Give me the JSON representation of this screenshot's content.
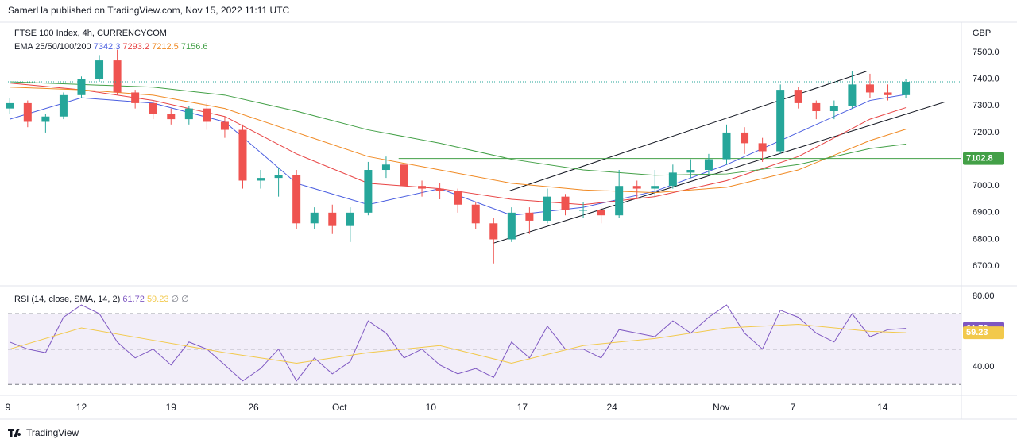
{
  "header": {
    "publisher": "SamerHa published on TradingView.com, Nov 15, 2022 11:11 UTC"
  },
  "footer": {
    "brand": "TradingView"
  },
  "chart_data": [
    {
      "type": "candlestick",
      "title": "FTSE 100 Index, 4h, CURRENCYCOM",
      "currency": "GBP",
      "indicator_label": "EMA 25/50/100/200",
      "up_color": "#26a69a",
      "down_color": "#ef5350",
      "x": [
        -4,
        -3,
        -2,
        -1,
        0,
        1,
        2,
        3,
        4,
        5,
        6,
        7,
        8,
        9,
        10,
        11,
        12,
        13,
        14,
        15,
        16,
        17,
        18,
        19,
        20,
        21,
        22,
        23,
        24,
        25,
        26,
        27,
        28,
        29,
        30,
        31,
        32,
        33,
        34,
        35,
        36,
        37,
        38,
        39,
        40,
        41,
        42,
        43,
        44,
        45,
        46
      ],
      "open": [
        7290,
        7310,
        7240,
        7260,
        7340,
        7400,
        7470,
        7350,
        7310,
        7270,
        7250,
        7290,
        7240,
        7210,
        7020,
        7030,
        7040,
        6860,
        6900,
        6850,
        6900,
        7060,
        7080,
        7000,
        6990,
        6980,
        6930,
        6860,
        6800,
        6900,
        6870,
        6960,
        6910,
        6910,
        6890,
        7000,
        6990,
        7000,
        7050,
        7060,
        7100,
        7200,
        7160,
        7130,
        7360,
        7310,
        7280,
        7300,
        7380,
        7350,
        7340
      ],
      "high": [
        7330,
        7320,
        7270,
        7350,
        7410,
        7490,
        7510,
        7360,
        7320,
        7290,
        7300,
        7310,
        7260,
        7230,
        7060,
        7070,
        7060,
        6920,
        6930,
        6920,
        7090,
        7110,
        7090,
        7020,
        7010,
        6990,
        6940,
        6880,
        6920,
        6920,
        6990,
        6970,
        6940,
        6920,
        7060,
        7020,
        7060,
        7080,
        7100,
        7120,
        7230,
        7220,
        7180,
        7380,
        7370,
        7320,
        7320,
        7430,
        7420,
        7380,
        7400
      ],
      "low": [
        7270,
        7220,
        7200,
        7250,
        7330,
        7390,
        7340,
        7290,
        7250,
        7230,
        7230,
        7210,
        7180,
        6990,
        6990,
        6960,
        6840,
        6840,
        6820,
        6790,
        6890,
        7030,
        6970,
        6960,
        6950,
        6900,
        6840,
        6710,
        6790,
        6820,
        6860,
        6890,
        6880,
        6860,
        6880,
        6950,
        6960,
        6990,
        7030,
        7040,
        7080,
        7120,
        7090,
        7120,
        7290,
        7250,
        7250,
        7290,
        7330,
        7320,
        7330
      ],
      "close": [
        7310,
        7240,
        7260,
        7340,
        7400,
        7470,
        7350,
        7310,
        7270,
        7250,
        7290,
        7240,
        7210,
        7020,
        7030,
        7040,
        6860,
        6900,
        6850,
        6900,
        7060,
        7080,
        7000,
        6990,
        6980,
        6930,
        6860,
        6800,
        6900,
        6870,
        6960,
        6910,
        6910,
        6890,
        7000,
        6990,
        7000,
        7050,
        7060,
        7100,
        7200,
        7160,
        7130,
        7360,
        7310,
        7280,
        7300,
        7380,
        7350,
        7340,
        7390
      ],
      "series": [
        {
          "color": "#4a5ee0",
          "x": [
            -4,
            0,
            4,
            8,
            12,
            16,
            20,
            24,
            28,
            32,
            36,
            40,
            44,
            46
          ],
          "values": [
            7250,
            7330,
            7310,
            7240,
            7010,
            6930,
            6990,
            6890,
            6920,
            6980,
            7080,
            7200,
            7320,
            7342.3
          ]
        },
        {
          "color": "#e84343",
          "x": [
            -4,
            0,
            4,
            8,
            12,
            16,
            20,
            24,
            28,
            32,
            36,
            40,
            44,
            46
          ],
          "values": [
            7385,
            7360,
            7320,
            7260,
            7120,
            7010,
            6990,
            6950,
            6930,
            6960,
            7020,
            7110,
            7250,
            7293.2
          ]
        },
        {
          "color": "#f08a24",
          "x": [
            -4,
            0,
            4,
            8,
            12,
            16,
            20,
            24,
            28,
            32,
            36,
            40,
            44,
            46
          ],
          "values": [
            7370,
            7360,
            7340,
            7290,
            7200,
            7110,
            7060,
            7010,
            6985,
            6975,
            6995,
            7060,
            7170,
            7212.5
          ]
        },
        {
          "color": "#43a047",
          "x": [
            -4,
            0,
            4,
            8,
            12,
            16,
            20,
            24,
            28,
            32,
            36,
            40,
            44,
            46
          ],
          "values": [
            7390,
            7380,
            7370,
            7340,
            7280,
            7210,
            7160,
            7100,
            7060,
            7040,
            7045,
            7080,
            7140,
            7156.6
          ]
        }
      ],
      "level": {
        "value": 7102.8,
        "x_start": 17.7,
        "color": "#43a047"
      },
      "trendlines": [
        {
          "x": [
            23.9,
            43.8
          ],
          "values": [
            6982,
            7429
          ]
        },
        {
          "x": [
            23.0,
            48.2
          ],
          "values": [
            6786,
            7315
          ]
        }
      ],
      "xlim": [
        -4.1,
        49.1
      ],
      "ylim": [
        6632,
        7607
      ],
      "yticks": [
        {
          "value": 7500,
          "label": "7500.0"
        },
        {
          "value": 7400,
          "label": "7400.0"
        },
        {
          "value": 7300,
          "label": "7300.0"
        },
        {
          "value": 7200,
          "label": "7200.0"
        },
        {
          "value": 7000,
          "label": "7000.0"
        },
        {
          "value": 6900,
          "label": "6900.0"
        },
        {
          "value": 6800,
          "label": "6800.0"
        },
        {
          "value": 6700,
          "label": "6700.0"
        }
      ]
    },
    {
      "type": "line",
      "title": "RSI (14, close, SMA, 14, 2)",
      "extra_label": "∅ ∅",
      "series": [
        {
          "color": "#7e57c2",
          "x": [
            -4,
            -3,
            -2,
            -1,
            0,
            1,
            2,
            3,
            4,
            5,
            6,
            7,
            8,
            9,
            10,
            11,
            12,
            13,
            14,
            15,
            16,
            17,
            18,
            19,
            20,
            21,
            22,
            23,
            24,
            25,
            26,
            27,
            28,
            29,
            30,
            31,
            32,
            33,
            34,
            35,
            36,
            37,
            38,
            39,
            40,
            41,
            42,
            43,
            44,
            45,
            46
          ],
          "values": [
            54,
            50,
            48,
            68,
            75,
            70,
            54,
            45,
            50,
            41,
            54,
            50,
            41,
            32,
            39,
            50,
            32,
            45,
            36,
            43,
            66,
            59,
            45,
            50,
            41,
            36,
            39,
            34,
            54,
            45,
            63,
            50,
            50,
            45,
            61,
            59,
            57,
            66,
            59,
            68,
            75,
            59,
            50,
            72,
            68,
            59,
            54,
            70,
            57,
            61,
            61.72
          ]
        },
        {
          "color": "#f2c94c",
          "x": [
            -4,
            0,
            4,
            8,
            12,
            16,
            20,
            24,
            28,
            32,
            36,
            40,
            44,
            46
          ],
          "values": [
            50,
            62,
            55,
            48,
            42,
            48,
            52,
            42,
            52,
            56,
            62,
            64,
            60,
            59.23
          ]
        }
      ],
      "bands": [
        70,
        50,
        30
      ],
      "band_color": "#7e57c2",
      "xlim": [
        -4.1,
        49.1
      ],
      "ylim": [
        26.5,
        84.9
      ],
      "yticks": [
        {
          "value": 80,
          "label": "80.00"
        },
        {
          "value": 40,
          "label": "40.00"
        }
      ],
      "xticks": [
        {
          "value": -4.1,
          "label": "9"
        },
        {
          "value": 0,
          "label": "12"
        },
        {
          "value": 5,
          "label": "19"
        },
        {
          "value": 9.6,
          "label": "26"
        },
        {
          "value": 14.4,
          "label": "Oct"
        },
        {
          "value": 19.5,
          "label": "10"
        },
        {
          "value": 24.6,
          "label": "17"
        },
        {
          "value": 29.6,
          "label": "24"
        },
        {
          "value": 35.7,
          "label": "Nov"
        },
        {
          "value": 39.7,
          "label": "7"
        },
        {
          "value": 44.7,
          "label": "14"
        }
      ]
    }
  ]
}
